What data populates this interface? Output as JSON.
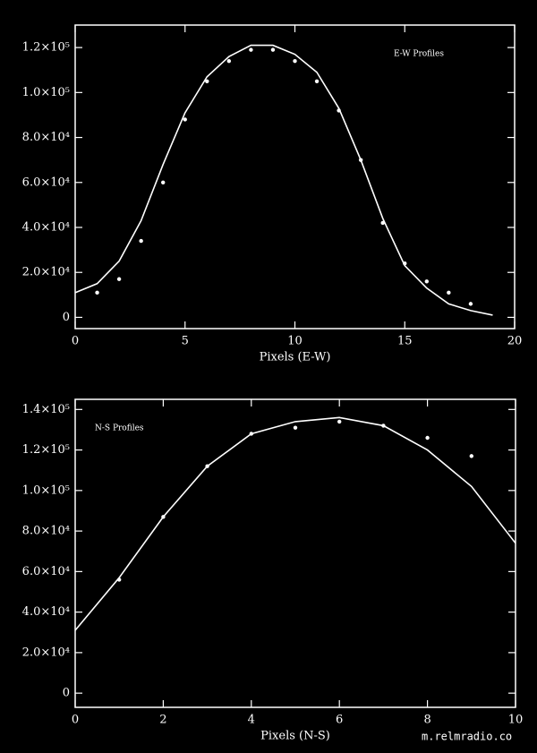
{
  "chart_data": [
    {
      "type": "line",
      "annotation": "E-W Profiles",
      "x_label": "Pixels (E-W)",
      "xlim": [
        0,
        20
      ],
      "xticks": [
        0,
        5,
        10,
        15,
        20
      ],
      "ylim": [
        -5000,
        130000
      ],
      "yticks": [
        0,
        {
          "value": 20000,
          "label": "2.0×10⁴"
        },
        {
          "value": 40000,
          "label": "4.0×10⁴"
        },
        {
          "value": 60000,
          "label": "6.0×10⁴"
        },
        {
          "value": 80000,
          "label": "8.0×10⁴"
        },
        {
          "value": 100000,
          "label": "1.0×10⁵"
        },
        {
          "value": 120000,
          "label": "1.2×10⁵"
        }
      ],
      "series": [
        {
          "style": "points",
          "color": "#ffffff",
          "x": [
            1,
            2,
            3,
            4,
            5,
            6,
            7,
            8,
            9,
            10,
            11,
            12,
            13,
            14,
            15,
            16,
            17,
            18
          ],
          "values": [
            11000,
            17000,
            34000,
            60000,
            88000,
            105000,
            114000,
            119000,
            119000,
            114000,
            105000,
            92000,
            70000,
            42000,
            24000,
            16000,
            11000,
            6000
          ]
        },
        {
          "style": "line",
          "color": "#ffffff",
          "x": [
            0,
            1,
            2,
            3,
            4,
            5,
            6,
            7,
            8,
            9,
            10,
            11,
            12,
            13,
            14,
            15,
            16,
            17,
            18,
            19
          ],
          "values": [
            11000,
            15000,
            25000,
            43000,
            68000,
            91000,
            107000,
            116000,
            121000,
            121000,
            117000,
            109000,
            93000,
            70000,
            44000,
            23000,
            13000,
            6000,
            3000,
            1000
          ]
        }
      ]
    },
    {
      "type": "line",
      "annotation": "N-S Profiles",
      "x_label": "Pixels (N-S)",
      "xlim": [
        0,
        10
      ],
      "xticks": [
        0,
        2,
        4,
        6,
        8,
        10
      ],
      "ylim": [
        -7000,
        145000
      ],
      "yticks": [
        0,
        {
          "value": 20000,
          "label": "2.0×10⁴"
        },
        {
          "value": 40000,
          "label": "4.0×10⁴"
        },
        {
          "value": 60000,
          "label": "6.0×10⁴"
        },
        {
          "value": 80000,
          "label": "8.0×10⁴"
        },
        {
          "value": 100000,
          "label": "1.0×10⁵"
        },
        {
          "value": 120000,
          "label": "1.2×10⁵"
        },
        {
          "value": 140000,
          "label": "1.4×10⁵"
        }
      ],
      "series": [
        {
          "style": "points",
          "color": "#ffffff",
          "x": [
            1,
            2,
            3,
            4,
            5,
            6,
            7,
            8,
            9
          ],
          "values": [
            56000,
            87000,
            112000,
            128000,
            131000,
            134000,
            132000,
            126000,
            117000
          ]
        },
        {
          "style": "line",
          "color": "#ffffff",
          "x": [
            0,
            1,
            2,
            3,
            4,
            5,
            6,
            7,
            8,
            9,
            10
          ],
          "values": [
            31000,
            57000,
            87000,
            112000,
            128000,
            134000,
            136000,
            132000,
            120000,
            102000,
            74000
          ]
        }
      ]
    }
  ],
  "watermark": "m.relmradio.co"
}
